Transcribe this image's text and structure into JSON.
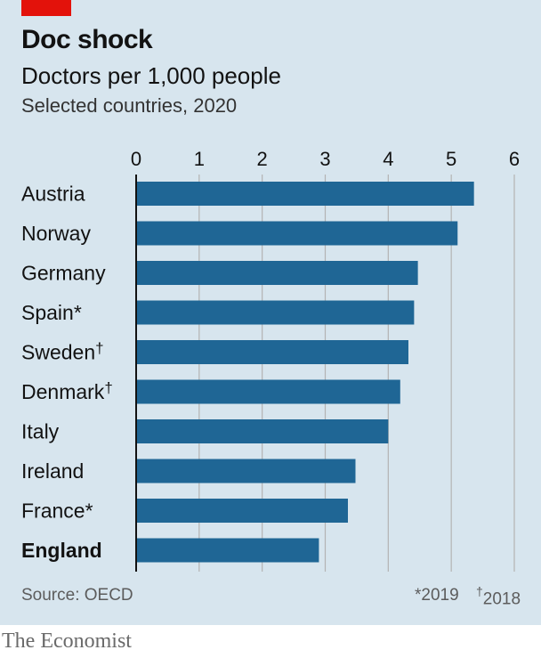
{
  "header": {
    "title": "Doc shock",
    "subtitle": "Doctors per 1,000 people",
    "note": "Selected countries, 2020"
  },
  "footer": {
    "source": "Source: OECD",
    "footnote_star": "*2019",
    "footnote_dagger_mark": "†",
    "footnote_dagger_year": "2018"
  },
  "credit": "The Economist",
  "colors": {
    "bar": "#1f6695",
    "background": "#d7e5ee",
    "grid": "#b3b3b3",
    "axis": "#121212",
    "accent": "#e3120b"
  },
  "chart_data": {
    "type": "bar",
    "orientation": "horizontal",
    "title": "Doc shock",
    "subtitle": "Doctors per 1,000 people",
    "xlim": [
      0,
      6
    ],
    "x_ticks": [
      "0",
      "1",
      "2",
      "3",
      "4",
      "5",
      "6"
    ],
    "grid": true,
    "categories": [
      {
        "name": "Austria",
        "mark": "",
        "bold": false
      },
      {
        "name": "Norway",
        "mark": "",
        "bold": false
      },
      {
        "name": "Germany",
        "mark": "",
        "bold": false
      },
      {
        "name": "Spain",
        "mark": "*",
        "bold": false
      },
      {
        "name": "Sweden",
        "mark": "†",
        "bold": false
      },
      {
        "name": "Denmark",
        "mark": "†",
        "bold": false
      },
      {
        "name": "Italy",
        "mark": "",
        "bold": false
      },
      {
        "name": "Ireland",
        "mark": "",
        "bold": false
      },
      {
        "name": "France",
        "mark": "*",
        "bold": false
      },
      {
        "name": "England",
        "mark": "",
        "bold": true
      }
    ],
    "values": [
      5.36,
      5.1,
      4.47,
      4.41,
      4.32,
      4.19,
      4.0,
      3.48,
      3.36,
      2.9
    ]
  }
}
